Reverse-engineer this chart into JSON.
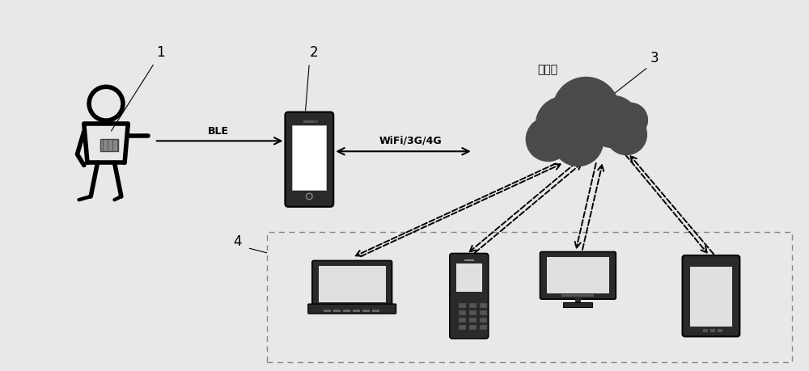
{
  "bg_color": "#e8e8e8",
  "figure_width": 10.0,
  "figure_height": 4.59,
  "dpi": 100,
  "label_1": "1",
  "label_2": "2",
  "label_3": "3",
  "label_4": "4",
  "ble_text": "BLE",
  "wifi_text": "WiFi/3G/4G",
  "cloud_text": "云平台",
  "body_color": "#2a2a2a",
  "cloud_color": "#4a4a4a",
  "screen_color": "#e0e0e0",
  "person_lw": 3.5
}
